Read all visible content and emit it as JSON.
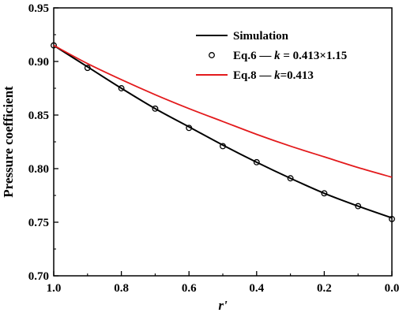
{
  "chart_data": {
    "type": "line",
    "xlabel": "r'",
    "ylabel": "Pressure coefficient",
    "xlim": [
      1.0,
      0.0
    ],
    "ylim": [
      0.7,
      0.95
    ],
    "x_reversed": true,
    "x_ticks": [
      "1.0",
      "0.8",
      "0.6",
      "0.4",
      "0.2",
      "0.0"
    ],
    "y_ticks": [
      "0.70",
      "0.75",
      "0.80",
      "0.85",
      "0.90",
      "0.95"
    ],
    "legend_position": "top-right",
    "series": [
      {
        "name": "Simulation",
        "style": "line",
        "color": "#000000",
        "x": [
          1.0,
          0.9,
          0.8,
          0.7,
          0.6,
          0.5,
          0.4,
          0.3,
          0.2,
          0.1,
          0.0
        ],
        "y": [
          0.915,
          0.895,
          0.875,
          0.856,
          0.839,
          0.822,
          0.806,
          0.791,
          0.777,
          0.765,
          0.754
        ]
      },
      {
        "name": "Eq.6 — k = 0.413×1.15",
        "label_prefix": "Eq.6 — ",
        "label_italic": "k",
        "label_suffix": " = 0.413×1.15",
        "style": "markers",
        "marker": "circle-open",
        "color": "#000000",
        "x": [
          1.0,
          0.9,
          0.8,
          0.7,
          0.6,
          0.5,
          0.4,
          0.3,
          0.2,
          0.1,
          0.0
        ],
        "y": [
          0.915,
          0.894,
          0.875,
          0.856,
          0.838,
          0.821,
          0.806,
          0.791,
          0.777,
          0.765,
          0.753
        ]
      },
      {
        "name": "Eq.8 — k=0.413",
        "label_prefix": "Eq.8 — ",
        "label_italic": "k",
        "label_suffix": "=0.413",
        "style": "line",
        "color": "#e31a1c",
        "x": [
          1.0,
          0.9,
          0.8,
          0.7,
          0.6,
          0.5,
          0.4,
          0.3,
          0.2,
          0.1,
          0.0
        ],
        "y": [
          0.915,
          0.898,
          0.883,
          0.869,
          0.856,
          0.844,
          0.832,
          0.821,
          0.811,
          0.801,
          0.792
        ]
      }
    ]
  }
}
